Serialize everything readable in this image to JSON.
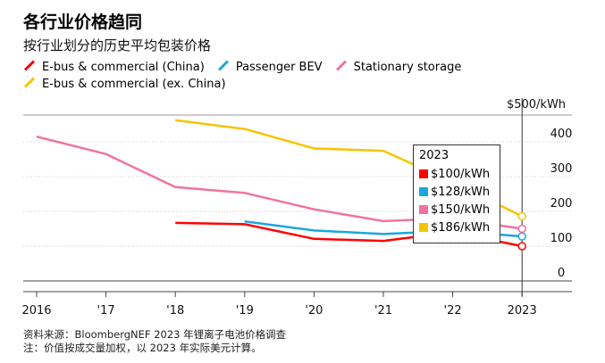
{
  "title": "各行业价格趋同",
  "subtitle": "按行业划分的历史平均包装价格",
  "footer": {
    "source": "资料来源：BloombergNEF 2023 年锂离子电池价格调查",
    "note": "注：价值按成交量加权，以 2023 年实际美元计算。"
  },
  "tooltip": {
    "year": "2023",
    "rows": [
      {
        "label": "$100/kWh",
        "color": "#ff0000"
      },
      {
        "label": "$128/kWh",
        "color": "#1aa7e0"
      },
      {
        "label": "$150/kWh",
        "color": "#f0739f"
      },
      {
        "label": "$186/kWh",
        "color": "#f5c400"
      }
    ]
  },
  "chart_data": {
    "type": "line",
    "x": [
      2016,
      2017,
      2018,
      2019,
      2020,
      2021,
      2022,
      2023
    ],
    "x_tick_labels": [
      "2016",
      "'17",
      "'18",
      "'19",
      "'20",
      "'21",
      "'22",
      "2023"
    ],
    "y_tick_labels": [
      "$500/kWh",
      "400",
      "300",
      "200",
      "100",
      "0"
    ],
    "y_ticks": [
      500,
      400,
      300,
      200,
      100,
      0
    ],
    "ylim": [
      0,
      500
    ],
    "grid": true,
    "legend_position": "top-left",
    "series": [
      {
        "name": "E-bus & commercial (China)",
        "color": "#ff0000",
        "values": [
          null,
          null,
          167,
          163,
          121,
          115,
          140,
          100
        ]
      },
      {
        "name": "Passenger BEV",
        "color": "#1aa7e0",
        "values": [
          null,
          null,
          null,
          171,
          145,
          135,
          144,
          128
        ]
      },
      {
        "name": "Stationary storage",
        "color": "#f0739f",
        "values": [
          415,
          365,
          270,
          253,
          206,
          172,
          180,
          150
        ]
      },
      {
        "name": "E-bus & commercial (ex. China)",
        "color": "#f5c400",
        "values": [
          null,
          null,
          462,
          437,
          381,
          374,
          284,
          186
        ]
      }
    ]
  }
}
